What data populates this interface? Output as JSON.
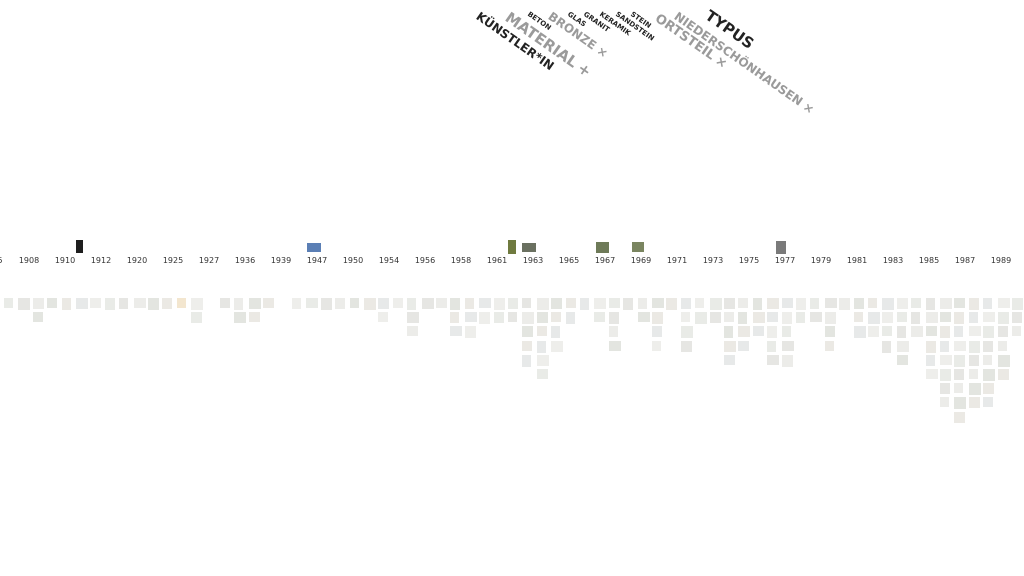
{
  "filters": {
    "typus": {
      "label": "TYPUS",
      "color": "#222222"
    },
    "ortsteil": {
      "label": "ORTSTEIL",
      "color": "#9a9a9a",
      "close": "×"
    },
    "niederschoenhausen": {
      "label": "NIEDERSCHÖNHAUSEN",
      "color": "#9a9a9a",
      "close": "×"
    },
    "stein": {
      "label": "STEIN",
      "color": "#222222"
    },
    "sandstein": {
      "label": "SANDSTEIN",
      "color": "#222222"
    },
    "keramik": {
      "label": "KERAMIK",
      "color": "#222222"
    },
    "granit": {
      "label": "GRANIT",
      "color": "#222222"
    },
    "glas": {
      "label": "GLAS",
      "color": "#222222"
    },
    "bronze": {
      "label": "BRONZE",
      "color": "#9a9a9a",
      "close": "×"
    },
    "beton": {
      "label": "BETON",
      "color": "#222222"
    },
    "material": {
      "label": "MATERIAL",
      "color": "#9a9a9a",
      "close": "+"
    },
    "kuenstlerin": {
      "label": "KÜNSTLER*IN",
      "color": "#222222"
    }
  },
  "timeline": {
    "years": [
      "5",
      "1908",
      "1910",
      "1912",
      "1920",
      "1925",
      "1927",
      "1936",
      "1939",
      "1947",
      "1950",
      "1954",
      "1956",
      "1958",
      "1961",
      "1963",
      "1965",
      "1967",
      "1969",
      "1971",
      "1973",
      "1975",
      "1977",
      "1979",
      "1981",
      "1983",
      "1985",
      "1987",
      "1989"
    ],
    "column_counts": [
      1,
      1,
      2,
      1,
      1,
      1,
      1,
      1,
      1,
      1,
      1,
      1,
      1,
      2,
      0,
      1,
      2,
      2,
      1,
      0,
      1,
      1,
      1,
      1,
      1,
      1,
      2,
      1,
      3,
      1,
      1,
      3,
      3,
      2,
      2,
      2,
      5,
      6,
      4,
      2,
      1,
      2,
      4,
      1,
      2,
      4,
      1,
      4,
      2,
      2,
      5,
      4,
      3,
      5,
      5,
      2,
      2,
      4,
      1,
      3,
      3,
      4,
      5,
      3,
      6,
      8,
      9,
      8,
      8,
      6,
      3
    ]
  },
  "highlighted_items": [
    {
      "year": "1910",
      "color": "#1e1e1e"
    },
    {
      "year": "1947",
      "color": "#5b7fb5"
    },
    {
      "year": "1961",
      "color": "#6f7a3f"
    },
    {
      "year": "1963",
      "color": "#6a7060"
    },
    {
      "year": "1967",
      "color": "#6e7a58"
    },
    {
      "year": "1969",
      "color": "#7a8560"
    },
    {
      "year": "1977",
      "color": "#7a7a7a"
    }
  ]
}
